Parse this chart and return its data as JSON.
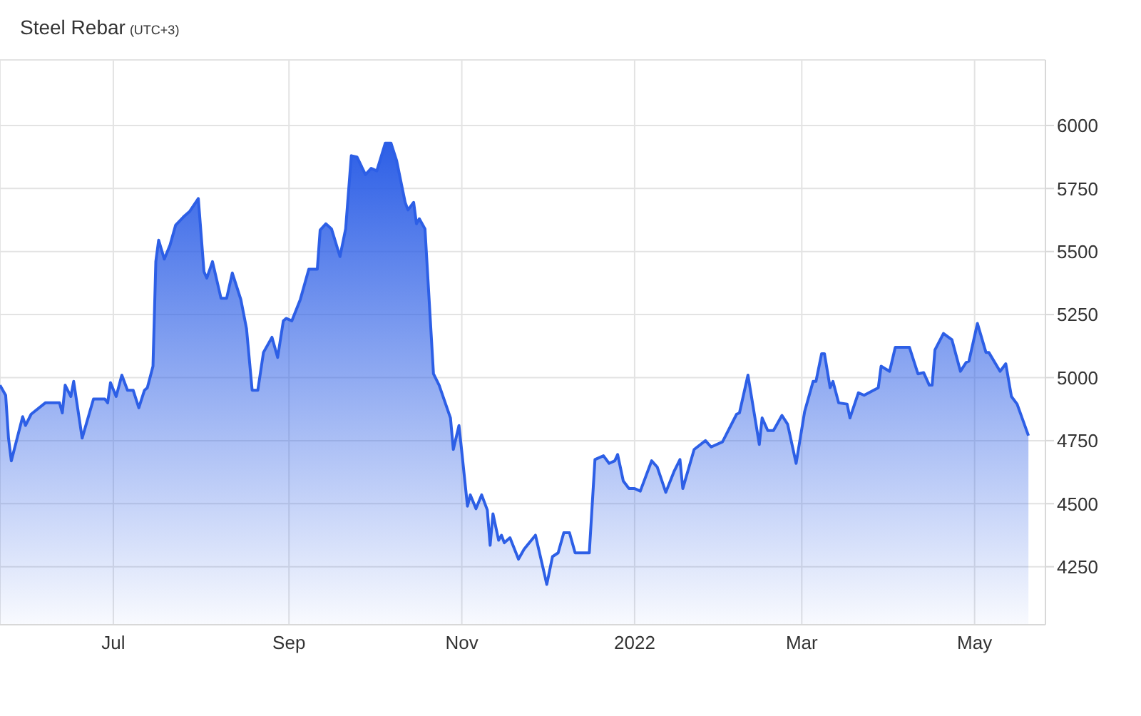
{
  "chart_data": {
    "type": "area",
    "title": "Steel Rebar",
    "subtitle": "(UTC+3)",
    "x": [
      "2021-05-22",
      "2021-05-24",
      "2021-05-25",
      "2021-05-26",
      "2021-05-30",
      "2021-05-31",
      "2021-06-02",
      "2021-06-07",
      "2021-06-12",
      "2021-06-13",
      "2021-06-14",
      "2021-06-16",
      "2021-06-17",
      "2021-06-20",
      "2021-06-24",
      "2021-06-28",
      "2021-06-29",
      "2021-06-30",
      "2021-07-02",
      "2021-07-04",
      "2021-07-06",
      "2021-07-08",
      "2021-07-10",
      "2021-07-12",
      "2021-07-13",
      "2021-07-15",
      "2021-07-16",
      "2021-07-17",
      "2021-07-19",
      "2021-07-21",
      "2021-07-23",
      "2021-07-26",
      "2021-07-28",
      "2021-07-31",
      "2021-08-02",
      "2021-08-03",
      "2021-08-05",
      "2021-08-08",
      "2021-08-10",
      "2021-08-12",
      "2021-08-15",
      "2021-08-17",
      "2021-08-19",
      "2021-08-21",
      "2021-08-23",
      "2021-08-26",
      "2021-08-28",
      "2021-08-30",
      "2021-08-31",
      "2021-09-02",
      "2021-09-05",
      "2021-09-08",
      "2021-09-11",
      "2021-09-12",
      "2021-09-14",
      "2021-09-16",
      "2021-09-19",
      "2021-09-21",
      "2021-09-23",
      "2021-09-25",
      "2021-09-28",
      "2021-09-30",
      "2021-10-02",
      "2021-10-05",
      "2021-10-07",
      "2021-10-09",
      "2021-10-12",
      "2021-10-13",
      "2021-10-15",
      "2021-10-16",
      "2021-10-17",
      "2021-10-19",
      "2021-10-22",
      "2021-10-24",
      "2021-10-28",
      "2021-10-29",
      "2021-10-31",
      "2021-11-01",
      "2021-11-03",
      "2021-11-04",
      "2021-11-06",
      "2021-11-08",
      "2021-11-10",
      "2021-11-11",
      "2021-11-12",
      "2021-11-14",
      "2021-11-15",
      "2021-11-16",
      "2021-11-18",
      "2021-11-21",
      "2021-11-23",
      "2021-11-27",
      "2021-12-01",
      "2021-12-03",
      "2021-12-05",
      "2021-12-07",
      "2021-12-09",
      "2021-12-11",
      "2021-12-16",
      "2021-12-18",
      "2021-12-21",
      "2021-12-23",
      "2021-12-25",
      "2021-12-26",
      "2021-12-28",
      "2021-12-30",
      "2022-01-01",
      "2022-01-03",
      "2022-01-07",
      "2022-01-09",
      "2022-01-12",
      "2022-01-15",
      "2022-01-17",
      "2022-01-18",
      "2022-01-22",
      "2022-01-26",
      "2022-01-28",
      "2022-02-01",
      "2022-02-06",
      "2022-02-07",
      "2022-02-10",
      "2022-02-14",
      "2022-02-15",
      "2022-02-17",
      "2022-02-19",
      "2022-02-22",
      "2022-02-24",
      "2022-02-27",
      "2022-03-02",
      "2022-03-05",
      "2022-03-06",
      "2022-03-08",
      "2022-03-09",
      "2022-03-11",
      "2022-03-12",
      "2022-03-14",
      "2022-03-17",
      "2022-03-18",
      "2022-03-21",
      "2022-03-23",
      "2022-03-28",
      "2022-03-29",
      "2022-04-01",
      "2022-04-03",
      "2022-04-08",
      "2022-04-11",
      "2022-04-13",
      "2022-04-15",
      "2022-04-16",
      "2022-04-17",
      "2022-04-20",
      "2022-04-23",
      "2022-04-26",
      "2022-04-28",
      "2022-04-29",
      "2022-05-02",
      "2022-05-05",
      "2022-05-06",
      "2022-05-10",
      "2022-05-12",
      "2022-05-14",
      "2022-05-16",
      "2022-05-20"
    ],
    "series": [
      {
        "color": "#2d5fe6",
        "values": [
          4970,
          4930,
          4760,
          4670,
          4845,
          4810,
          4855,
          4900,
          4900,
          4860,
          4970,
          4925,
          4985,
          4760,
          4915,
          4915,
          4900,
          4980,
          4925,
          5010,
          4950,
          4950,
          4880,
          4950,
          4960,
          5045,
          5460,
          5545,
          5470,
          5525,
          5605,
          5640,
          5660,
          5710,
          5420,
          5395,
          5460,
          5315,
          5315,
          5415,
          5310,
          5195,
          4950,
          4950,
          5100,
          5160,
          5080,
          5225,
          5235,
          5225,
          5310,
          5430,
          5430,
          5585,
          5610,
          5590,
          5480,
          5590,
          5880,
          5875,
          5805,
          5830,
          5820,
          5930,
          5930,
          5860,
          5695,
          5665,
          5695,
          5610,
          5630,
          5590,
          5015,
          4970,
          4840,
          4715,
          4810,
          4705,
          4490,
          4535,
          4480,
          4535,
          4475,
          4335,
          4460,
          4355,
          4375,
          4345,
          4365,
          4280,
          4320,
          4375,
          4180,
          4290,
          4305,
          4385,
          4385,
          4305,
          4305,
          4675,
          4690,
          4660,
          4670,
          4695,
          4590,
          4560,
          4560,
          4550,
          4670,
          4645,
          4545,
          4630,
          4675,
          4560,
          4715,
          4750,
          4725,
          4745,
          4855,
          4860,
          5010,
          4735,
          4840,
          4790,
          4790,
          4850,
          4815,
          4660,
          4865,
          4985,
          4985,
          5095,
          5095,
          4960,
          4985,
          4900,
          4895,
          4840,
          4940,
          4930,
          4960,
          5045,
          5025,
          5120,
          5120,
          5015,
          5020,
          4970,
          4970,
          5110,
          5175,
          5150,
          5025,
          5060,
          5065,
          5215,
          5100,
          5100,
          5025,
          5055,
          4925,
          4895,
          4770
        ]
      }
    ],
    "xlim": [
      "2021-05-22",
      "2022-05-26"
    ],
    "xticks": [
      {
        "value": "2021-07-01",
        "label": "Jul"
      },
      {
        "value": "2021-09-01",
        "label": "Sep"
      },
      {
        "value": "2021-11-01",
        "label": "Nov"
      },
      {
        "value": "2022-01-01",
        "label": "2022"
      },
      {
        "value": "2022-03-01",
        "label": "Mar"
      },
      {
        "value": "2022-05-01",
        "label": "May"
      }
    ],
    "ylim": [
      4020,
      6260
    ],
    "yticks": [
      4250,
      4500,
      4750,
      5000,
      5250,
      5500,
      5750,
      6000
    ],
    "grid": true
  }
}
